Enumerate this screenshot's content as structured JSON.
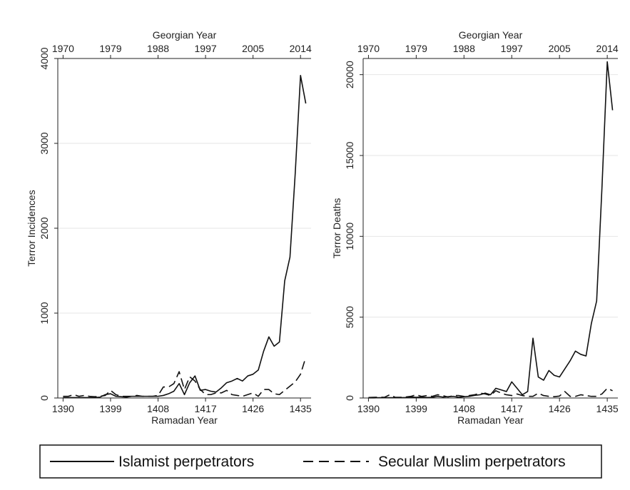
{
  "legend": {
    "entries": [
      {
        "label": "Islamist perpetrators",
        "dash": "solid"
      },
      {
        "label": "Secular Muslim perpetrators",
        "dash": "dashed"
      }
    ],
    "placement": "bottom"
  },
  "chart_data": [
    {
      "type": "line",
      "xlabel": "Ramadan Year",
      "x2label": "Georgian Year",
      "ylabel": "Terror Incidences",
      "xlim": [
        1389,
        1437
      ],
      "ylim": [
        0,
        4000
      ],
      "xticks": [
        1390,
        1399,
        1408,
        1417,
        1426,
        1435
      ],
      "x2ticks": [
        "1970",
        "1979",
        "1988",
        "1997",
        "2005",
        "2014"
      ],
      "yticks": [
        0,
        1000,
        2000,
        3000,
        4000
      ],
      "grid": true,
      "x": [
        1390,
        1391,
        1392,
        1393,
        1394,
        1395,
        1396,
        1397,
        1398,
        1399,
        1400,
        1401,
        1402,
        1403,
        1404,
        1405,
        1406,
        1407,
        1408,
        1409,
        1410,
        1411,
        1412,
        1413,
        1414,
        1415,
        1416,
        1417,
        1418,
        1419,
        1420,
        1421,
        1422,
        1423,
        1424,
        1425,
        1426,
        1427,
        1428,
        1429,
        1430,
        1431,
        1432,
        1433,
        1434,
        1435,
        1436
      ],
      "series": [
        {
          "name": "Islamist perpetrators",
          "values": [
            5,
            5,
            5,
            5,
            5,
            5,
            5,
            10,
            40,
            50,
            20,
            15,
            10,
            20,
            20,
            20,
            20,
            20,
            20,
            30,
            50,
            80,
            170,
            40,
            180,
            260,
            90,
            100,
            80,
            70,
            120,
            180,
            200,
            230,
            200,
            260,
            280,
            330,
            550,
            720,
            610,
            660,
            1380,
            1660,
            2650,
            3800,
            3470
          ]
        },
        {
          "name": "Secular Muslim perpetrators",
          "values": [
            20,
            20,
            40,
            20,
            30,
            20,
            15,
            20,
            30,
            90,
            40,
            20,
            20,
            20,
            30,
            20,
            20,
            20,
            30,
            130,
            130,
            170,
            310,
            100,
            250,
            200,
            100,
            40,
            40,
            60,
            60,
            90,
            40,
            30,
            20,
            40,
            60,
            20,
            100,
            100,
            50,
            40,
            90,
            140,
            190,
            280,
            480
          ]
        }
      ]
    },
    {
      "type": "line",
      "xlabel": "Ramadan Year",
      "x2label": "Georgian Year",
      "ylabel": "Terror Deaths",
      "xlim": [
        1389,
        1437
      ],
      "ylim": [
        0,
        21000
      ],
      "xticks": [
        1390,
        1399,
        1408,
        1417,
        1426,
        1435
      ],
      "x2ticks": [
        "1970",
        "1979",
        "1988",
        "1997",
        "2005",
        "2014"
      ],
      "yticks": [
        0,
        5000,
        10000,
        15000,
        20000
      ],
      "grid": true,
      "x": [
        1390,
        1391,
        1392,
        1393,
        1394,
        1395,
        1396,
        1397,
        1398,
        1399,
        1400,
        1401,
        1402,
        1403,
        1404,
        1405,
        1406,
        1407,
        1408,
        1409,
        1410,
        1411,
        1412,
        1413,
        1414,
        1415,
        1416,
        1417,
        1418,
        1419,
        1420,
        1421,
        1422,
        1423,
        1424,
        1425,
        1426,
        1427,
        1428,
        1429,
        1430,
        1431,
        1432,
        1433,
        1434,
        1435,
        1436
      ],
      "series": [
        {
          "name": "Islamist perpetrators",
          "values": [
            10,
            10,
            20,
            20,
            20,
            20,
            20,
            30,
            60,
            40,
            60,
            30,
            40,
            100,
            60,
            80,
            100,
            40,
            80,
            100,
            160,
            200,
            300,
            200,
            600,
            500,
            400,
            1000,
            600,
            200,
            400,
            3700,
            1300,
            1100,
            1700,
            1400,
            1300,
            1800,
            2300,
            2900,
            2700,
            2600,
            4600,
            6000,
            13000,
            20800,
            17800
          ]
        },
        {
          "name": "Secular Muslim perpetrators",
          "values": [
            30,
            40,
            50,
            40,
            200,
            50,
            40,
            60,
            100,
            200,
            100,
            150,
            100,
            200,
            150,
            60,
            150,
            150,
            100,
            150,
            200,
            300,
            250,
            150,
            450,
            300,
            200,
            150,
            250,
            150,
            100,
            100,
            300,
            150,
            100,
            80,
            120,
            400,
            100,
            100,
            200,
            150,
            100,
            100,
            250,
            600,
            450
          ]
        }
      ]
    }
  ]
}
